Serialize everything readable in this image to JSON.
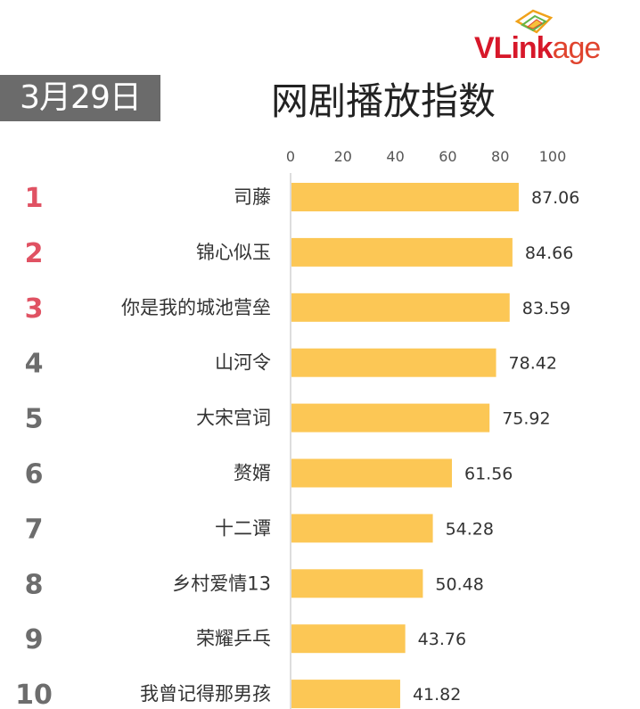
{
  "header": {
    "date": "3月29日",
    "title": "网剧播放指数",
    "logo_brand": "VLink",
    "logo_rest": "age"
  },
  "colors": {
    "bar": "#fcc755",
    "rank_top": "#e05263",
    "rank_other": "#6d6d6d",
    "axis": "#bbbbbb"
  },
  "chart_data": {
    "type": "bar",
    "orientation": "horizontal",
    "title": "网剧播放指数",
    "ranks": [
      "1",
      "2",
      "3",
      "4",
      "5",
      "6",
      "7",
      "8",
      "9",
      "10"
    ],
    "categories": [
      "司藤",
      "锦心似玉",
      "你是我的城池营垒",
      "山河令",
      "大宋宫词",
      "赘婿",
      "十二谭",
      "乡村爱情13",
      "荣耀乒乓",
      "我曾记得那男孩"
    ],
    "values": [
      87.06,
      84.66,
      83.59,
      78.42,
      75.92,
      61.56,
      54.28,
      50.48,
      43.76,
      41.82
    ],
    "value_labels": [
      "87.06",
      "84.66",
      "83.59",
      "78.42",
      "75.92",
      "61.56",
      "54.28",
      "50.48",
      "43.76",
      "41.82"
    ],
    "xticks": [
      0,
      20,
      40,
      60,
      80,
      100
    ],
    "xtick_labels": [
      "0",
      "20",
      "40",
      "60",
      "80",
      "100"
    ],
    "xlim": [
      0,
      100
    ],
    "grid": false,
    "xaxis_position": "top"
  }
}
